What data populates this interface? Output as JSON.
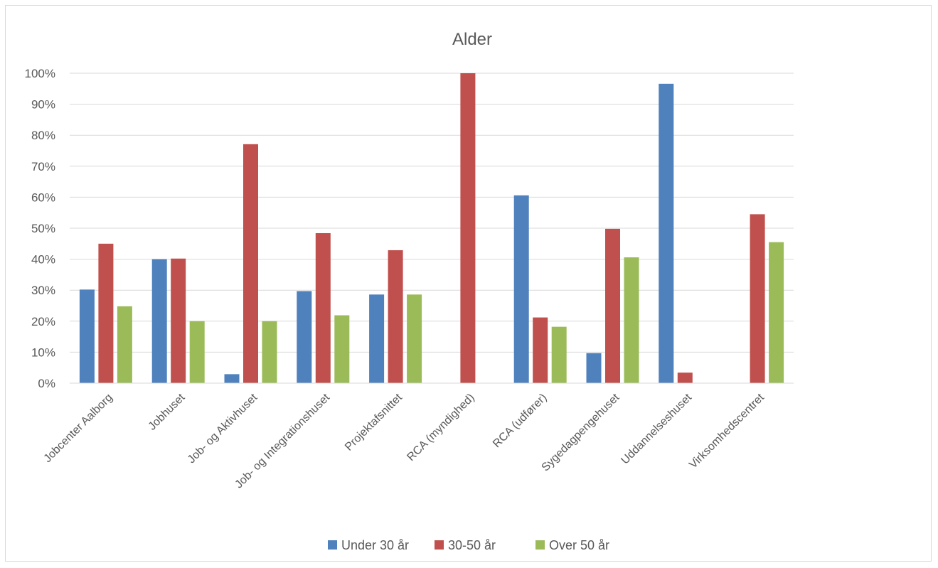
{
  "chart_data": {
    "type": "bar",
    "title": "Alder",
    "xlabel": "",
    "ylabel": "",
    "ylim": [
      0,
      100
    ],
    "yticks": [
      "0%",
      "10%",
      "20%",
      "30%",
      "40%",
      "50%",
      "60%",
      "70%",
      "80%",
      "90%",
      "100%"
    ],
    "grid": true,
    "legend_position": "bottom",
    "categories": [
      "Jobcenter Aalborg",
      "Jobhuset",
      "Job- og Aktivhuset",
      "Job- og Integrationshuset",
      "Projektafsnittet",
      "RCA (myndighed)",
      "RCA (udfører)",
      "Sygedagpengehuset",
      "Uddannelseshuset",
      "Virksomhedscentret"
    ],
    "series": [
      {
        "name": "Under 30 år",
        "color": "#4f81bd",
        "values": [
          30.2,
          40.0,
          2.9,
          29.7,
          28.6,
          0,
          60.6,
          9.7,
          96.6,
          0
        ]
      },
      {
        "name": "30-50 år",
        "color": "#c0504d",
        "values": [
          45.0,
          40.2,
          77.1,
          48.4,
          42.9,
          100,
          21.2,
          49.8,
          3.4,
          54.5
        ]
      },
      {
        "name": "Over 50 år",
        "color": "#9bbb59",
        "values": [
          24.8,
          20.0,
          20.0,
          21.9,
          28.6,
          0,
          18.2,
          40.6,
          0,
          45.5
        ]
      }
    ]
  }
}
